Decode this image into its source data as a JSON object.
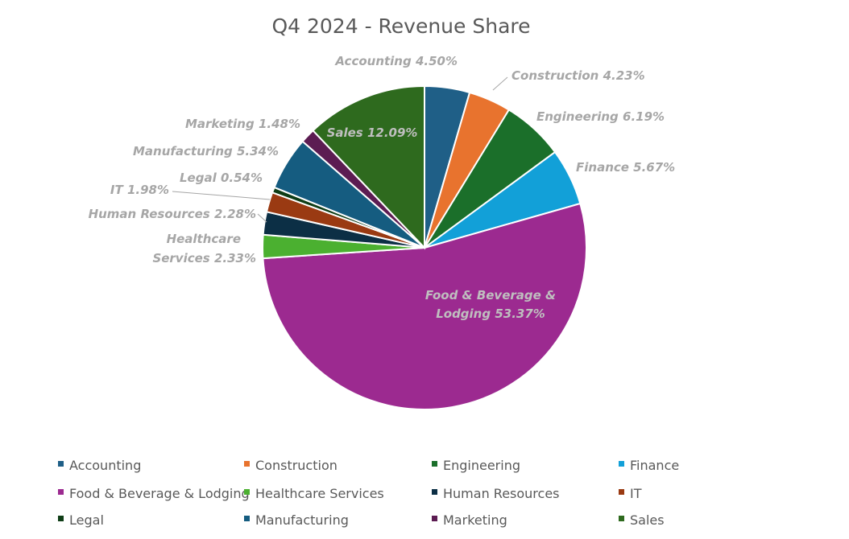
{
  "chart_data": {
    "type": "pie",
    "title": "Q4 2024 - Revenue Share",
    "legend_position": "bottom",
    "slices": [
      {
        "name": "Accounting",
        "value": 4.5,
        "label": "4.50%",
        "color": "#1f5f87"
      },
      {
        "name": "Construction",
        "value": 4.23,
        "label": "4.23%",
        "color": "#e8732e"
      },
      {
        "name": "Engineering",
        "value": 6.19,
        "label": "6.19%",
        "color": "#1b6f2a"
      },
      {
        "name": "Finance",
        "value": 5.67,
        "label": "5.67%",
        "color": "#12a0d8"
      },
      {
        "name": "Food & Beverage & Lodging",
        "value": 53.37,
        "label": "53.37%",
        "color": "#9c2a90"
      },
      {
        "name": "Healthcare Services",
        "value": 2.33,
        "label": "2.33%",
        "color": "#4bb030"
      },
      {
        "name": "Human Resources",
        "value": 2.28,
        "label": "2.28%",
        "color": "#0c2f45"
      },
      {
        "name": "IT",
        "value": 1.98,
        "label": "1.98%",
        "color": "#9a3a12"
      },
      {
        "name": "Legal",
        "value": 0.54,
        "label": "0.54%",
        "color": "#0e3d16"
      },
      {
        "name": "Manufacturing",
        "value": 5.34,
        "label": "5.34%",
        "color": "#155c80"
      },
      {
        "name": "Marketing",
        "value": 1.48,
        "label": "1.48%",
        "color": "#5c1c52"
      },
      {
        "name": "Sales",
        "value": 12.09,
        "label": "12.09%",
        "color": "#2e6a1e"
      }
    ]
  }
}
